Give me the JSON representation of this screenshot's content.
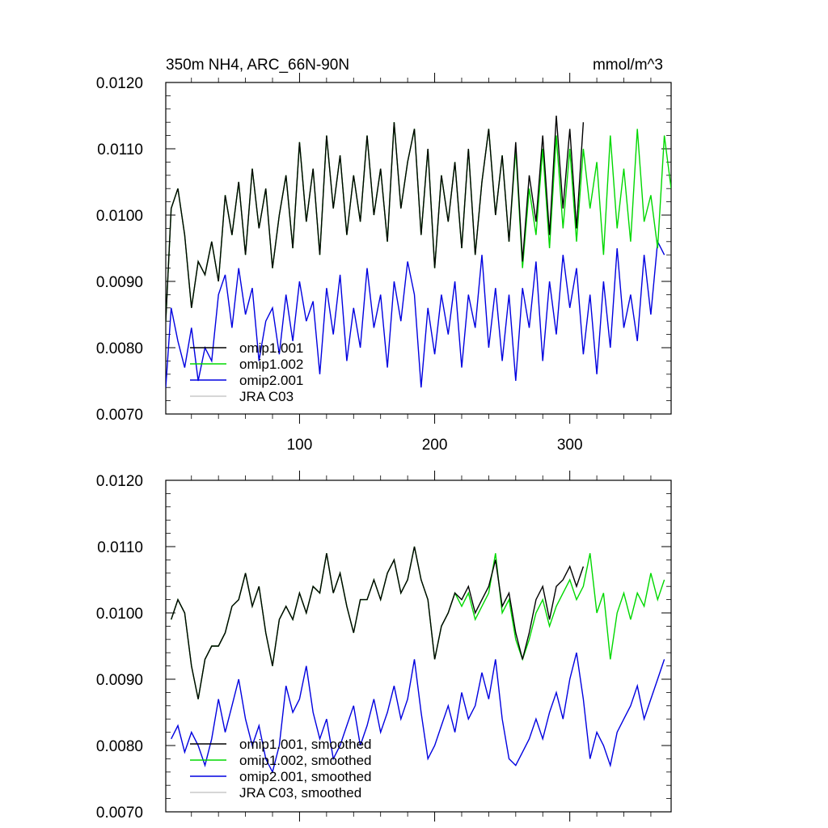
{
  "figure": {
    "title_left": "350m NH4, ARC_66N-90N",
    "title_right": "mmol/m^3"
  },
  "chart_data": [
    {
      "type": "line",
      "title": "350m NH4, ARC_66N-90N",
      "units": "mmol/m^3",
      "xlim": [
        1,
        375
      ],
      "ylim": [
        0.007,
        0.012
      ],
      "x_ticks": [
        100,
        200,
        300
      ],
      "x_tick_labels": [
        "100",
        "200",
        "300"
      ],
      "y_ticks": [
        0.007,
        0.008,
        0.009,
        0.01,
        0.011,
        0.012
      ],
      "y_tick_labels": [
        "0.0070",
        "0.0080",
        "0.0090",
        "0.0100",
        "0.0110",
        "0.0120"
      ],
      "grid": false,
      "legend_position": "bottom-left",
      "series": [
        {
          "name": "omip1.001",
          "color": "#000000",
          "x_start": 1,
          "x_end": 310,
          "x": [
            1,
            5,
            10,
            15,
            20,
            25,
            30,
            35,
            40,
            45,
            50,
            55,
            60,
            65,
            70,
            75,
            80,
            85,
            90,
            95,
            100,
            105,
            110,
            115,
            120,
            125,
            130,
            135,
            140,
            145,
            150,
            155,
            160,
            165,
            170,
            175,
            180,
            185,
            190,
            195,
            200,
            205,
            210,
            215,
            220,
            225,
            230,
            235,
            240,
            245,
            250,
            255,
            260,
            265,
            270,
            275,
            280,
            285,
            290,
            295,
            300,
            305,
            310
          ],
          "y": [
            0.0084,
            0.0101,
            0.0104,
            0.0097,
            0.0086,
            0.0093,
            0.0091,
            0.0096,
            0.009,
            0.0103,
            0.0097,
            0.0105,
            0.0094,
            0.0107,
            0.0098,
            0.0104,
            0.0092,
            0.01,
            0.0106,
            0.0095,
            0.0111,
            0.0099,
            0.0107,
            0.0094,
            0.0112,
            0.0101,
            0.0109,
            0.0097,
            0.0106,
            0.0099,
            0.0112,
            0.01,
            0.0107,
            0.0096,
            0.0114,
            0.0101,
            0.0108,
            0.0113,
            0.0097,
            0.011,
            0.0092,
            0.0106,
            0.0099,
            0.0108,
            0.0095,
            0.011,
            0.0094,
            0.0105,
            0.0113,
            0.01,
            0.0109,
            0.0096,
            0.0111,
            0.0093,
            0.0106,
            0.0099,
            0.0112,
            0.0097,
            0.0115,
            0.0101,
            0.0113,
            0.0098,
            0.0114
          ]
        },
        {
          "name": "omip1.002",
          "color": "#00d800",
          "x_start": 1,
          "x_end": 375,
          "x": [
            1,
            5,
            10,
            15,
            20,
            25,
            30,
            35,
            40,
            45,
            50,
            55,
            60,
            65,
            70,
            75,
            80,
            85,
            90,
            95,
            100,
            105,
            110,
            115,
            120,
            125,
            130,
            135,
            140,
            145,
            150,
            155,
            160,
            165,
            170,
            175,
            180,
            185,
            190,
            195,
            200,
            205,
            210,
            215,
            220,
            225,
            230,
            235,
            240,
            245,
            250,
            255,
            260,
            265,
            270,
            275,
            280,
            285,
            290,
            295,
            300,
            305,
            310,
            315,
            320,
            325,
            330,
            335,
            340,
            345,
            350,
            355,
            360,
            365,
            370,
            375
          ],
          "y": [
            0.0084,
            0.0101,
            0.0104,
            0.0097,
            0.0086,
            0.0093,
            0.0091,
            0.0096,
            0.009,
            0.0103,
            0.0097,
            0.0105,
            0.0094,
            0.0107,
            0.0098,
            0.0104,
            0.0092,
            0.01,
            0.0106,
            0.0095,
            0.0111,
            0.0099,
            0.0107,
            0.0094,
            0.0112,
            0.0101,
            0.0109,
            0.0097,
            0.0106,
            0.0099,
            0.0112,
            0.01,
            0.0107,
            0.0096,
            0.0114,
            0.0101,
            0.0108,
            0.0113,
            0.0097,
            0.011,
            0.0092,
            0.0106,
            0.0099,
            0.0108,
            0.0095,
            0.011,
            0.0094,
            0.0105,
            0.0113,
            0.01,
            0.0109,
            0.0096,
            0.011,
            0.0092,
            0.0104,
            0.0097,
            0.011,
            0.0095,
            0.0112,
            0.0098,
            0.011,
            0.0096,
            0.011,
            0.0101,
            0.0108,
            0.0094,
            0.0112,
            0.0098,
            0.0107,
            0.0096,
            0.0113,
            0.0099,
            0.0103,
            0.0095,
            0.0112,
            0.0104
          ]
        },
        {
          "name": "omip2.001",
          "color": "#0000e0",
          "x_start": 1,
          "x_end": 370,
          "x": [
            1,
            5,
            10,
            15,
            20,
            25,
            30,
            35,
            40,
            45,
            50,
            55,
            60,
            65,
            70,
            75,
            80,
            85,
            90,
            95,
            100,
            105,
            110,
            115,
            120,
            125,
            130,
            135,
            140,
            145,
            150,
            155,
            160,
            165,
            170,
            175,
            180,
            185,
            190,
            195,
            200,
            205,
            210,
            215,
            220,
            225,
            230,
            235,
            240,
            245,
            250,
            255,
            260,
            265,
            270,
            275,
            280,
            285,
            290,
            295,
            300,
            305,
            310,
            315,
            320,
            325,
            330,
            335,
            340,
            345,
            350,
            355,
            360,
            365,
            370
          ],
          "y": [
            0.0074,
            0.0086,
            0.0081,
            0.0077,
            0.0083,
            0.0075,
            0.008,
            0.0078,
            0.0088,
            0.0091,
            0.0083,
            0.0092,
            0.0085,
            0.0089,
            0.0078,
            0.0084,
            0.0086,
            0.0079,
            0.0088,
            0.0081,
            0.009,
            0.0084,
            0.0087,
            0.0076,
            0.0089,
            0.0082,
            0.0091,
            0.0078,
            0.0086,
            0.008,
            0.0092,
            0.0083,
            0.0088,
            0.0077,
            0.009,
            0.0084,
            0.0093,
            0.0088,
            0.0074,
            0.0086,
            0.0079,
            0.0088,
            0.0082,
            0.009,
            0.0077,
            0.0088,
            0.0083,
            0.0094,
            0.008,
            0.0089,
            0.0078,
            0.0088,
            0.0075,
            0.0089,
            0.0083,
            0.0093,
            0.0078,
            0.009,
            0.0082,
            0.0094,
            0.0086,
            0.0092,
            0.0079,
            0.0088,
            0.0076,
            0.009,
            0.008,
            0.0095,
            0.0083,
            0.0088,
            0.0081,
            0.0094,
            0.0085,
            0.0096,
            0.0094
          ]
        },
        {
          "name": "JRA C03",
          "color": "#c8c8c8",
          "x": [],
          "y": []
        }
      ]
    },
    {
      "type": "line",
      "xlim": [
        1,
        375
      ],
      "ylim": [
        0.007,
        0.012
      ],
      "x_ticks": [
        100,
        200,
        300
      ],
      "y_ticks": [
        0.007,
        0.008,
        0.009,
        0.01,
        0.011,
        0.012
      ],
      "y_tick_labels": [
        "0.0070",
        "0.0080",
        "0.0090",
        "0.0100",
        "0.0110",
        "0.0120"
      ],
      "grid": false,
      "legend_position": "bottom-left",
      "series": [
        {
          "name": "omip1.001, smoothed",
          "color": "#000000",
          "x": [
            5,
            10,
            15,
            20,
            25,
            30,
            35,
            40,
            45,
            50,
            55,
            60,
            65,
            70,
            75,
            80,
            85,
            90,
            95,
            100,
            105,
            110,
            115,
            120,
            125,
            130,
            135,
            140,
            145,
            150,
            155,
            160,
            165,
            170,
            175,
            180,
            185,
            190,
            195,
            200,
            205,
            210,
            215,
            220,
            225,
            230,
            235,
            240,
            245,
            250,
            255,
            260,
            265,
            270,
            275,
            280,
            285,
            290,
            295,
            300,
            305,
            310
          ],
          "y": [
            0.0099,
            0.0102,
            0.01,
            0.0092,
            0.0087,
            0.0093,
            0.0095,
            0.0095,
            0.0097,
            0.0101,
            0.0102,
            0.0106,
            0.0101,
            0.0104,
            0.0097,
            0.0092,
            0.0099,
            0.0101,
            0.0099,
            0.0103,
            0.01,
            0.0104,
            0.0103,
            0.0109,
            0.0103,
            0.0106,
            0.0101,
            0.0097,
            0.0102,
            0.0102,
            0.0105,
            0.0102,
            0.0106,
            0.0108,
            0.0103,
            0.0105,
            0.011,
            0.0105,
            0.0102,
            0.0093,
            0.0098,
            0.01,
            0.0103,
            0.0102,
            0.0104,
            0.01,
            0.0102,
            0.0104,
            0.0108,
            0.0101,
            0.0103,
            0.0097,
            0.0093,
            0.0097,
            0.0102,
            0.0104,
            0.0099,
            0.0104,
            0.0105,
            0.0107,
            0.0104,
            0.0107
          ]
        },
        {
          "name": "omip1.002, smoothed",
          "color": "#00d800",
          "x": [
            5,
            10,
            15,
            20,
            25,
            30,
            35,
            40,
            45,
            50,
            55,
            60,
            65,
            70,
            75,
            80,
            85,
            90,
            95,
            100,
            105,
            110,
            115,
            120,
            125,
            130,
            135,
            140,
            145,
            150,
            155,
            160,
            165,
            170,
            175,
            180,
            185,
            190,
            195,
            200,
            205,
            210,
            215,
            220,
            225,
            230,
            235,
            240,
            245,
            250,
            255,
            260,
            265,
            270,
            275,
            280,
            285,
            290,
            295,
            300,
            305,
            310,
            315,
            320,
            325,
            330,
            335,
            340,
            345,
            350,
            355,
            360,
            365,
            370
          ],
          "y": [
            0.0099,
            0.0102,
            0.01,
            0.0092,
            0.0087,
            0.0093,
            0.0095,
            0.0095,
            0.0097,
            0.0101,
            0.0102,
            0.0106,
            0.0101,
            0.0104,
            0.0097,
            0.0092,
            0.0099,
            0.0101,
            0.0099,
            0.0103,
            0.01,
            0.0104,
            0.0103,
            0.0109,
            0.0103,
            0.0106,
            0.0101,
            0.0097,
            0.0102,
            0.0102,
            0.0105,
            0.0102,
            0.0106,
            0.0108,
            0.0103,
            0.0105,
            0.011,
            0.0105,
            0.0102,
            0.0093,
            0.0098,
            0.01,
            0.0103,
            0.0101,
            0.0103,
            0.0099,
            0.0101,
            0.0103,
            0.0109,
            0.01,
            0.0102,
            0.0096,
            0.0093,
            0.0096,
            0.01,
            0.0102,
            0.0098,
            0.0101,
            0.0103,
            0.0105,
            0.0102,
            0.0104,
            0.0109,
            0.01,
            0.0103,
            0.0093,
            0.01,
            0.0103,
            0.0099,
            0.0103,
            0.0101,
            0.0106,
            0.0102,
            0.0105
          ]
        },
        {
          "name": "omip2.001, smoothed",
          "color": "#0000e0",
          "x": [
            5,
            10,
            15,
            20,
            25,
            30,
            35,
            40,
            45,
            50,
            55,
            60,
            65,
            70,
            75,
            80,
            85,
            90,
            95,
            100,
            105,
            110,
            115,
            120,
            125,
            130,
            135,
            140,
            145,
            150,
            155,
            160,
            165,
            170,
            175,
            180,
            185,
            190,
            195,
            200,
            205,
            210,
            215,
            220,
            225,
            230,
            235,
            240,
            245,
            250,
            255,
            260,
            265,
            270,
            275,
            280,
            285,
            290,
            295,
            300,
            305,
            310,
            315,
            320,
            325,
            330,
            335,
            340,
            345,
            350,
            355,
            360,
            365,
            370
          ],
          "y": [
            0.0081,
            0.0083,
            0.0079,
            0.0082,
            0.008,
            0.0077,
            0.0081,
            0.0087,
            0.0082,
            0.0086,
            0.009,
            0.0084,
            0.008,
            0.0083,
            0.0078,
            0.0076,
            0.008,
            0.0089,
            0.0085,
            0.0087,
            0.0092,
            0.0085,
            0.0081,
            0.0084,
            0.0078,
            0.008,
            0.0083,
            0.0086,
            0.008,
            0.0083,
            0.0087,
            0.0082,
            0.0085,
            0.0089,
            0.0084,
            0.0087,
            0.0093,
            0.0085,
            0.0078,
            0.008,
            0.0083,
            0.0086,
            0.0082,
            0.0088,
            0.0084,
            0.0086,
            0.0091,
            0.0087,
            0.0093,
            0.0084,
            0.0078,
            0.0077,
            0.0079,
            0.0081,
            0.0084,
            0.0081,
            0.0085,
            0.0088,
            0.0084,
            0.009,
            0.0094,
            0.0087,
            0.0078,
            0.0082,
            0.008,
            0.0077,
            0.0082,
            0.0084,
            0.0086,
            0.0089,
            0.0084,
            0.0087,
            0.009,
            0.0093
          ]
        },
        {
          "name": "JRA C03, smoothed",
          "color": "#c8c8c8",
          "x": [],
          "y": []
        }
      ]
    }
  ]
}
